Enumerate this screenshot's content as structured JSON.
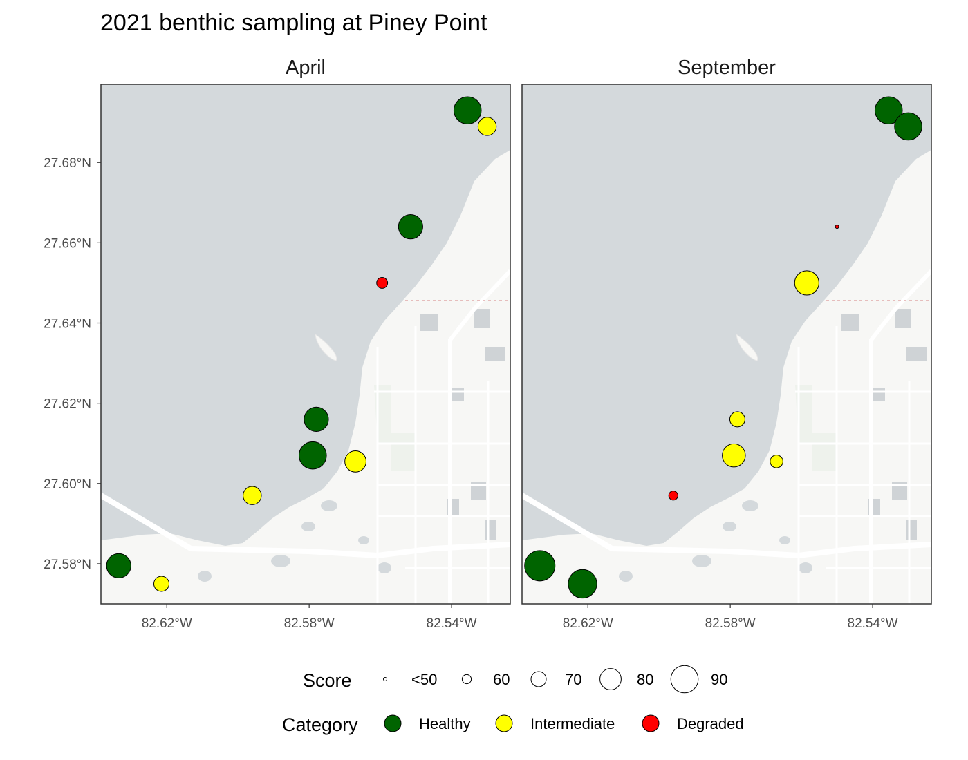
{
  "title": "2021 benthic sampling at Piney Point",
  "colors": {
    "water": "#d4d9dc",
    "land": "#f7f7f5",
    "road": "#ffffff",
    "park": "#eef2ec",
    "building": "#cfd3d6",
    "boundary": "#e0aaaa",
    "Healthy": "#006400",
    "Intermediate": "#ffff00",
    "Degraded": "#ff0000"
  },
  "chart_data": {
    "type": "scatter",
    "facets": [
      "April",
      "September"
    ],
    "x_ticks": [
      {
        "value": -82.62,
        "label": "82.62°W"
      },
      {
        "value": -82.58,
        "label": "82.58°W"
      },
      {
        "value": -82.54,
        "label": "82.54°W"
      }
    ],
    "y_ticks": [
      {
        "value": 27.58,
        "label": "27.58°N"
      },
      {
        "value": 27.6,
        "label": "27.60°N"
      },
      {
        "value": 27.62,
        "label": "27.62°N"
      },
      {
        "value": 27.64,
        "label": "27.64°N"
      },
      {
        "value": 27.66,
        "label": "27.66°N"
      },
      {
        "value": 27.68,
        "label": "27.68°N"
      }
    ],
    "xlim": [
      -82.6385,
      -82.5235
    ],
    "ylim": [
      27.57,
      27.6995
    ],
    "points": {
      "April": [
        {
          "lon": -82.5355,
          "lat": 27.693,
          "category": "Healthy",
          "score": 90
        },
        {
          "lon": -82.53,
          "lat": 27.689,
          "category": "Intermediate",
          "score": 75
        },
        {
          "lon": -82.5515,
          "lat": 27.664,
          "category": "Healthy",
          "score": 85
        },
        {
          "lon": -82.5595,
          "lat": 27.65,
          "category": "Degraded",
          "score": 63
        },
        {
          "lon": -82.578,
          "lat": 27.616,
          "category": "Healthy",
          "score": 85
        },
        {
          "lon": -82.579,
          "lat": 27.607,
          "category": "Healthy",
          "score": 90
        },
        {
          "lon": -82.567,
          "lat": 27.6055,
          "category": "Intermediate",
          "score": 80
        },
        {
          "lon": -82.596,
          "lat": 27.597,
          "category": "Intermediate",
          "score": 75
        },
        {
          "lon": -82.6335,
          "lat": 27.5795,
          "category": "Healthy",
          "score": 85
        },
        {
          "lon": -82.6215,
          "lat": 27.575,
          "category": "Intermediate",
          "score": 70
        }
      ],
      "September": [
        {
          "lon": -82.5355,
          "lat": 27.693,
          "category": "Healthy",
          "score": 90
        },
        {
          "lon": -82.53,
          "lat": 27.689,
          "category": "Healthy",
          "score": 90
        },
        {
          "lon": -82.55,
          "lat": 27.664,
          "category": "Degraded",
          "score": 50
        },
        {
          "lon": -82.5585,
          "lat": 27.65,
          "category": "Intermediate",
          "score": 85
        },
        {
          "lon": -82.578,
          "lat": 27.616,
          "category": "Intermediate",
          "score": 70
        },
        {
          "lon": -82.579,
          "lat": 27.607,
          "category": "Intermediate",
          "score": 83
        },
        {
          "lon": -82.567,
          "lat": 27.6055,
          "category": "Intermediate",
          "score": 66
        },
        {
          "lon": -82.596,
          "lat": 27.597,
          "category": "Degraded",
          "score": 60
        },
        {
          "lon": -82.6335,
          "lat": 27.5795,
          "category": "Healthy",
          "score": 95
        },
        {
          "lon": -82.6215,
          "lat": 27.575,
          "category": "Healthy",
          "score": 92
        }
      ]
    },
    "legend": {
      "placement": "bottom",
      "score_title": "Score",
      "score_items": [
        {
          "label": "<50",
          "score": 50
        },
        {
          "label": "60",
          "score": 60
        },
        {
          "label": "70",
          "score": 70
        },
        {
          "label": "80",
          "score": 80
        },
        {
          "label": "90",
          "score": 90
        }
      ],
      "category_title": "Category",
      "category_items": [
        "Healthy",
        "Intermediate",
        "Degraded"
      ]
    }
  }
}
